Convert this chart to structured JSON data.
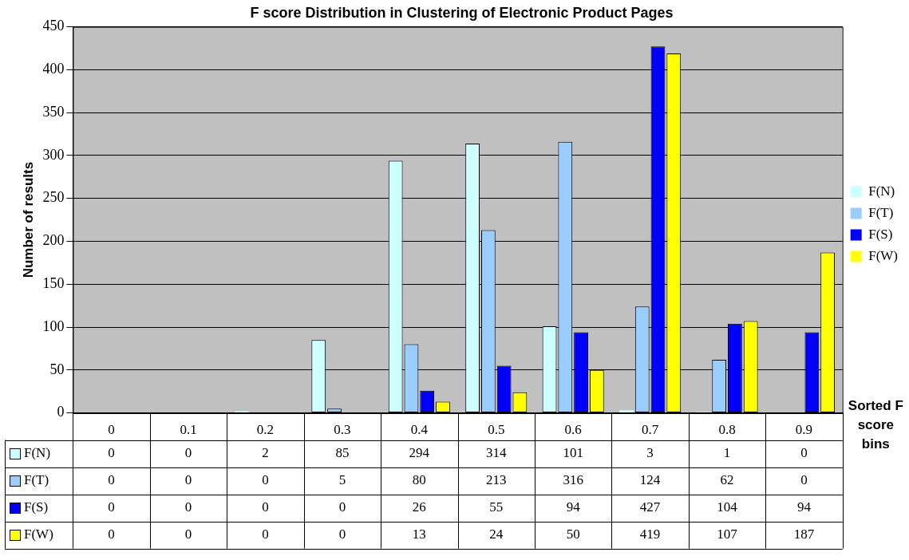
{
  "chart_data": {
    "type": "bar",
    "title": "F score Distribution in Clustering of Electronic Product Pages",
    "xlabel": "Sorted F score bins",
    "ylabel": "Number of results",
    "categories": [
      "0",
      "0.1",
      "0.2",
      "0.3",
      "0.4",
      "0.5",
      "0.6",
      "0.7",
      "0.8",
      "0.9"
    ],
    "series": [
      {
        "name": "F(N)",
        "color": "#ccffff",
        "values": [
          0,
          0,
          2,
          85,
          294,
          314,
          101,
          3,
          1,
          0
        ]
      },
      {
        "name": "F(T)",
        "color": "#99ccff",
        "values": [
          0,
          0,
          0,
          5,
          80,
          213,
          316,
          124,
          62,
          0
        ]
      },
      {
        "name": "F(S)",
        "color": "#0000ff",
        "values": [
          0,
          0,
          0,
          0,
          26,
          55,
          94,
          427,
          104,
          94
        ]
      },
      {
        "name": "F(W)",
        "color": "#ffff00",
        "values": [
          0,
          0,
          0,
          0,
          13,
          24,
          50,
          419,
          107,
          187
        ]
      }
    ],
    "ylim": [
      0,
      450
    ],
    "yticks": [
      0,
      50,
      100,
      150,
      200,
      250,
      300,
      350,
      400,
      450
    ],
    "grid": "y",
    "legend": "right",
    "data_labels": true
  }
}
